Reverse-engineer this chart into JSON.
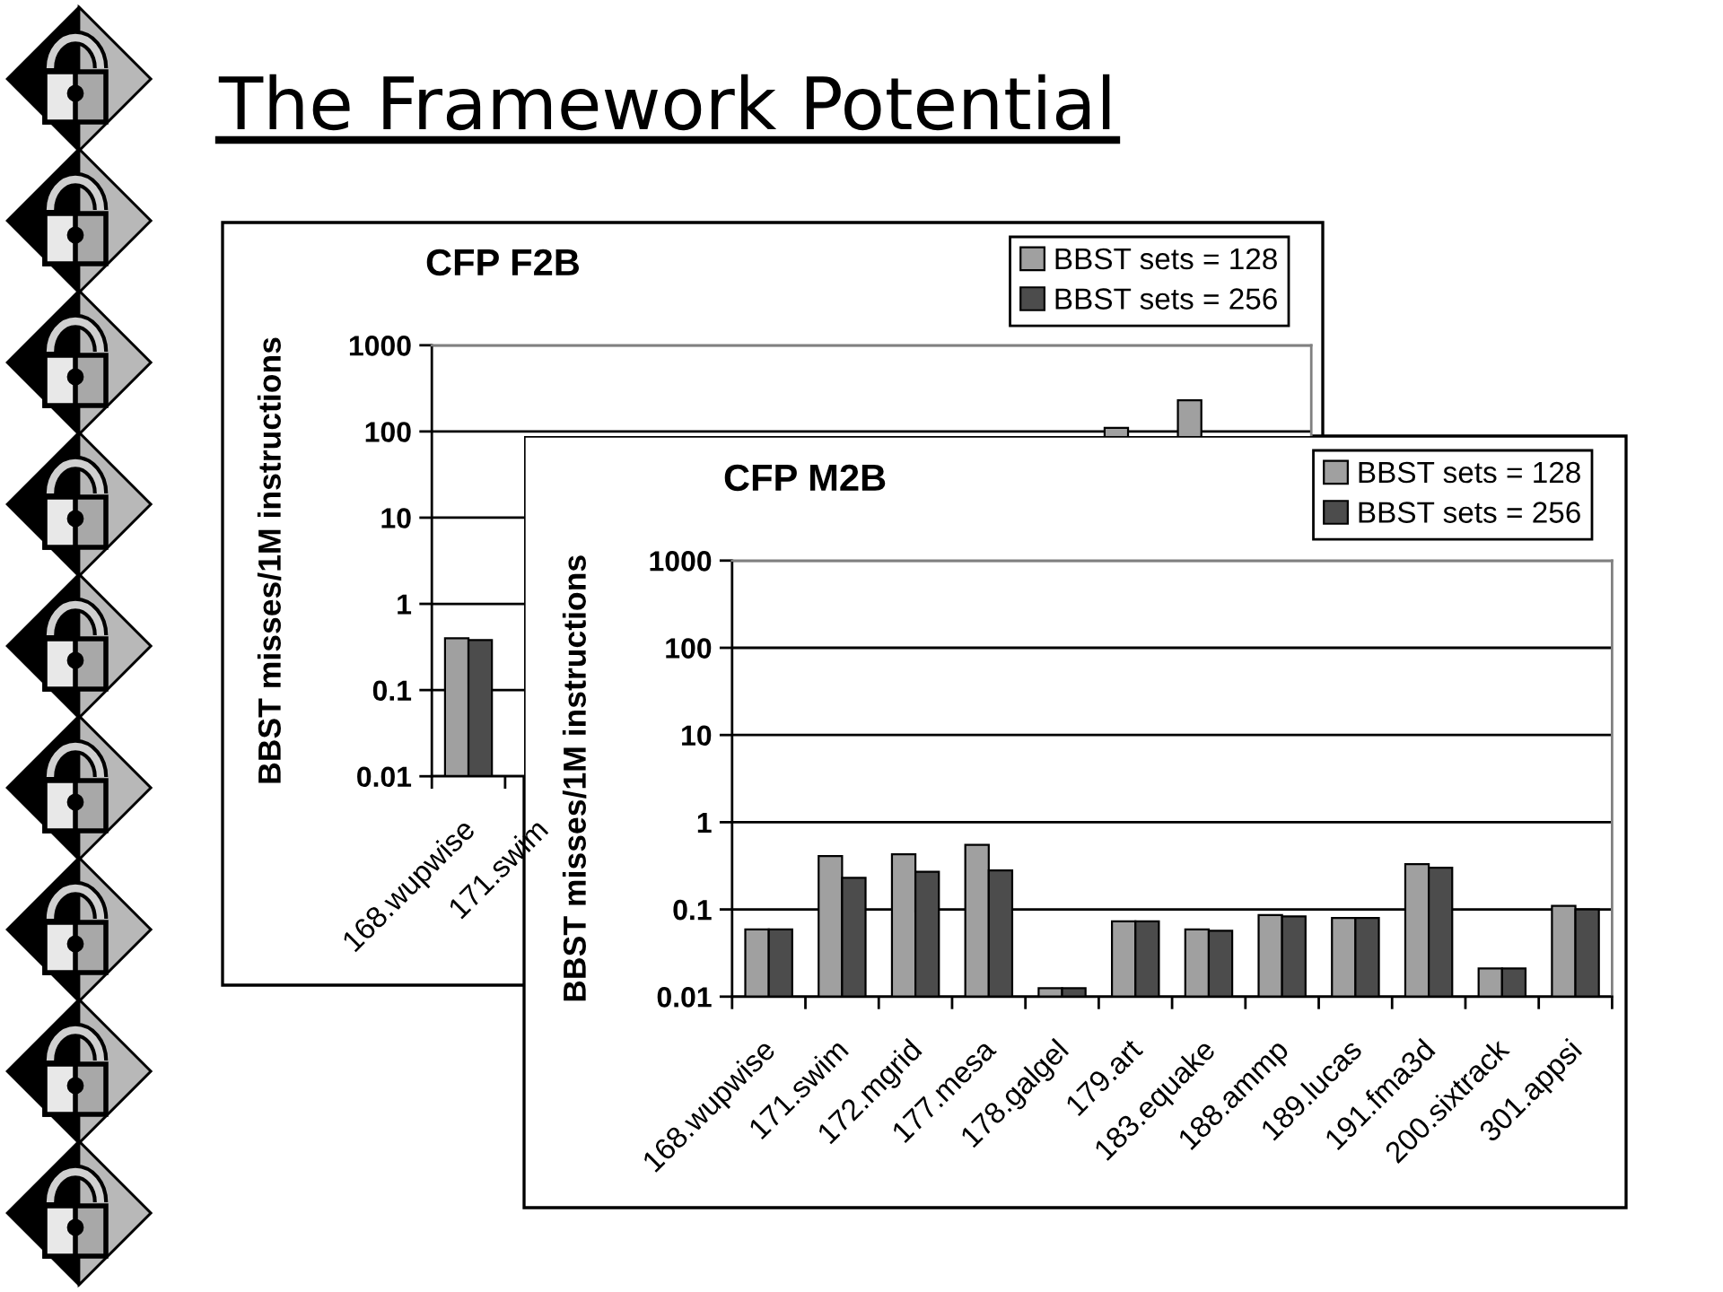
{
  "chart_data": [
    {
      "type": "bar",
      "title": "CFP F2B",
      "ylabel": "BBST misses/1M instructions",
      "annotations": [
        "The Framework Potential"
      ],
      "categories": [
        "168.wupwise",
        "171.swim",
        null,
        null,
        null,
        null,
        null,
        null,
        null,
        null,
        null,
        null
      ],
      "series": [
        {
          "name": "BBST sets = 128",
          "color": "#a0a0a0",
          "values": [
            0.4,
            null,
            null,
            null,
            null,
            null,
            null,
            null,
            null,
            110,
            230,
            null
          ]
        },
        {
          "name": "BBST sets = 256",
          "color": "#4c4c4c",
          "values": [
            0.38,
            null,
            null,
            null,
            null,
            null,
            null,
            null,
            null,
            null,
            null,
            null
          ]
        }
      ],
      "ylim": [
        0.01,
        1000
      ],
      "yticks": [
        0.01,
        0.1,
        1,
        10,
        100,
        1000
      ],
      "log": true,
      "grid": "y",
      "legend": "top right"
    },
    {
      "type": "bar",
      "title": "CFP M2B",
      "ylabel": "BBST misses/1M instructions",
      "categories": [
        "168.wupwise",
        "171.swim",
        "172.mgrid",
        "177.mesa",
        "178.galgel",
        "179.art",
        "183.equake",
        "188.ammp",
        "189.lucas",
        "191.fma3d",
        "200.sixtrack",
        "301.appsi"
      ],
      "series": [
        {
          "name": "BBST sets = 128",
          "color": "#a0a0a0",
          "values": [
            0.059,
            0.41,
            0.43,
            0.55,
            0.0125,
            0.073,
            0.059,
            0.086,
            0.08,
            0.33,
            0.021,
            0.11
          ]
        },
        {
          "name": "BBST sets = 256",
          "color": "#4c4c4c",
          "values": [
            0.059,
            0.23,
            0.27,
            0.28,
            0.0125,
            0.073,
            0.057,
            0.083,
            0.08,
            0.3,
            0.021,
            0.1
          ]
        }
      ],
      "ylim": [
        0.01,
        1000
      ],
      "yticks": [
        0.01,
        0.1,
        1,
        10,
        100,
        1000
      ],
      "log": true,
      "grid": "y",
      "legend": "top right"
    }
  ]
}
